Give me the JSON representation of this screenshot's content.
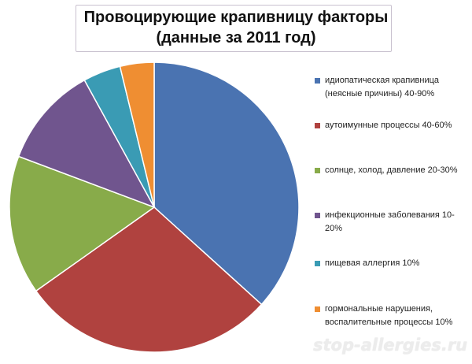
{
  "chart_data": {
    "type": "pie",
    "title": "Провоцирующие крапивницу факторы",
    "subtitle": "(данные за 2011 год)",
    "start_angle_deg": 0,
    "direction": "clockwise",
    "legend_position": "right",
    "slices": [
      {
        "label": "идиопатическая крапивница (неясные причины) 40-90%",
        "value": 36.7,
        "color": "#4a73b1"
      },
      {
        "label": "аутоимунные процессы 40-60%",
        "value": 28.5,
        "color": "#b0423f"
      },
      {
        "label": "солнце, холод, давление 20-30%",
        "value": 15.5,
        "color": "#88ab4a"
      },
      {
        "label": "инфекционные заболевания 10-20%",
        "value": 11.3,
        "color": "#70558e"
      },
      {
        "label": "пищевая аллергия 10%",
        "value": 4.2,
        "color": "#3a9bb4"
      },
      {
        "label": "гормональные нарушения, воспалительные процессы 10%",
        "value": 3.8,
        "color": "#ef8e32"
      }
    ]
  },
  "watermark": "stop-allergies.ru"
}
